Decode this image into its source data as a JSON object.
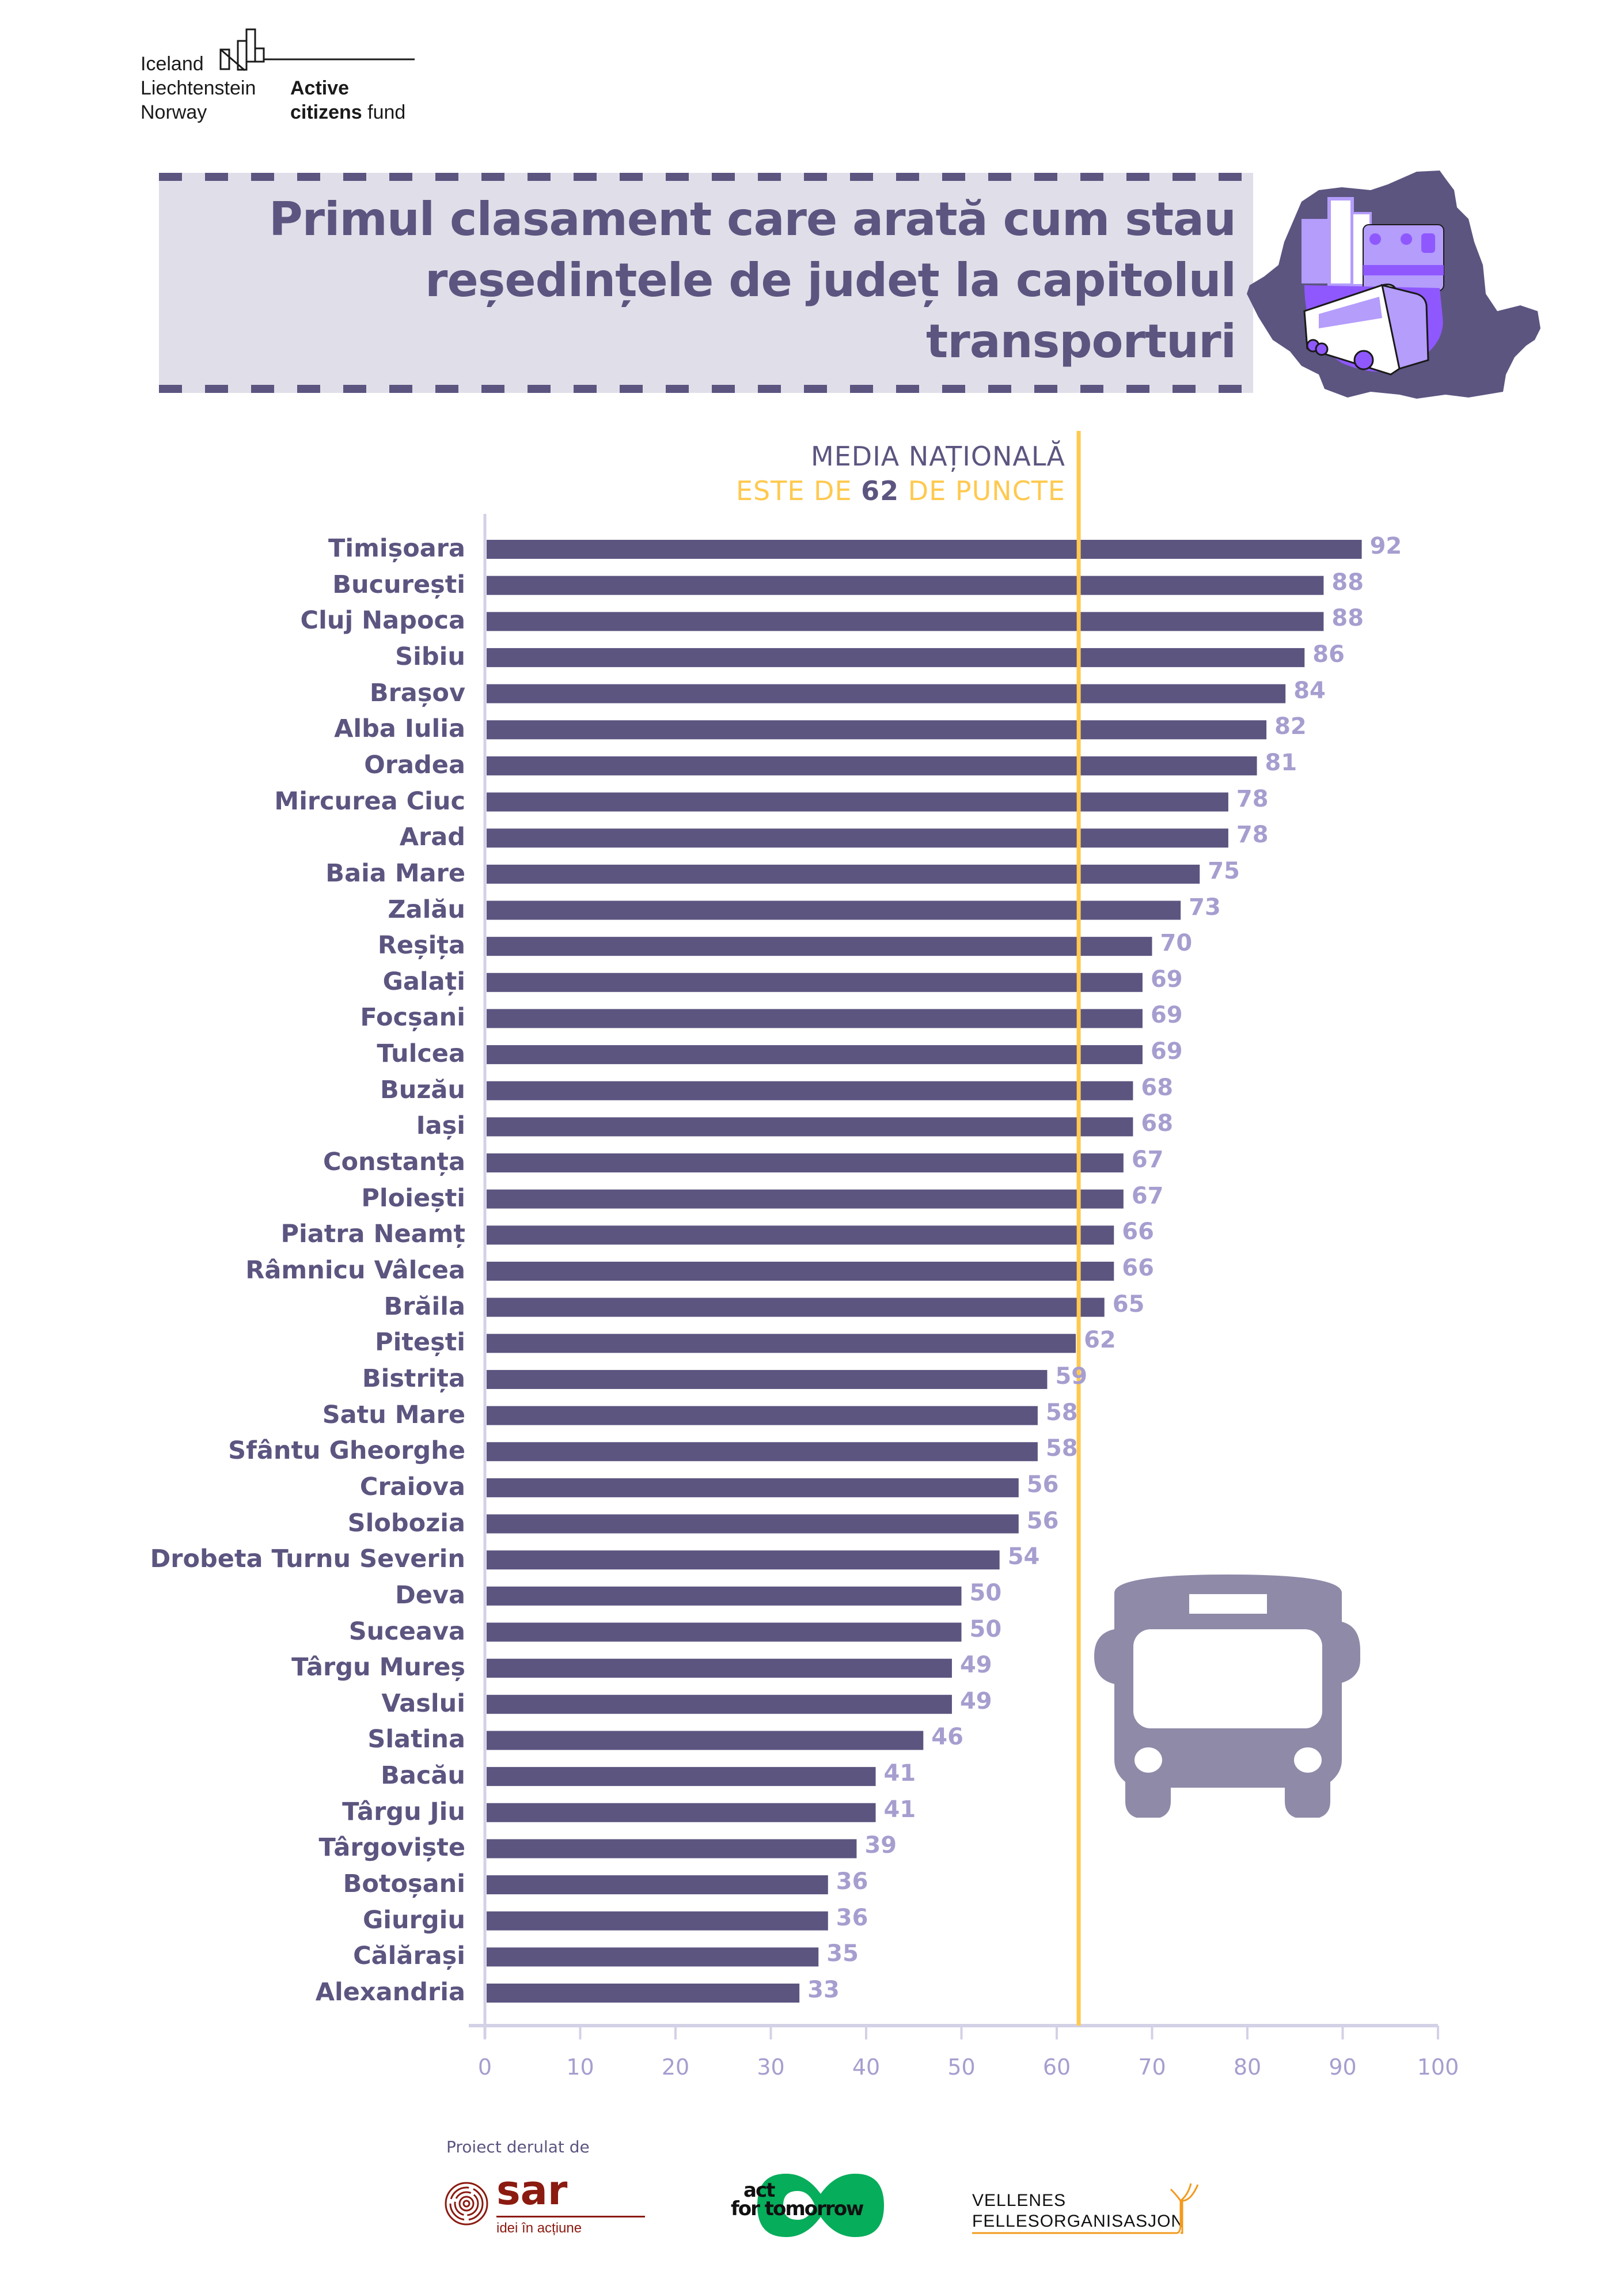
{
  "header": {
    "logo_left_lines": [
      "Iceland",
      "Liechtenstein",
      "Norway"
    ],
    "logo_right_bold_1": "Active",
    "logo_right_bold_2": "citizens",
    "logo_right_regular": "fund"
  },
  "banner": {
    "title_lines": [
      "Primul clasament care arată cum stau",
      "reședințele de județ la capitolul",
      "transporturi"
    ],
    "illustration": "romania-map-bus-city-icon"
  },
  "annotation": {
    "line1": "MEDIA NAȚIONALĂ",
    "line2_prefix": "ESTE DE",
    "line2_number": "62",
    "line2_suffix": "DE PUNCTE"
  },
  "colors": {
    "bar": "#5c5580",
    "value_label": "#a69ecf",
    "mean_line": "#ffc94f",
    "axis": "#d3d1e6",
    "banner_bg": "#e0dfe9",
    "bus_icon": "#8f8aa8"
  },
  "chart_data": {
    "type": "bar",
    "orientation": "horizontal",
    "title": "Primul clasament care arată cum stau reședințele de județ la capitolul transporturi",
    "xlabel": "",
    "ylabel": "",
    "xlim": [
      0,
      100
    ],
    "xticks": [
      "0",
      "10",
      "20",
      "30",
      "40",
      "50",
      "60",
      "70",
      "80",
      "90",
      "100"
    ],
    "reference_line": {
      "value": 62,
      "label": "MEDIA NAȚIONALĂ ESTE DE 62 DE PUNCTE"
    },
    "grid": false,
    "legend": "none",
    "categories": [
      "Timișoara",
      "București",
      "Cluj Napoca",
      "Sibiu",
      "Brașov",
      "Alba Iulia",
      "Oradea",
      "Mircurea Ciuc",
      "Arad",
      "Baia Mare",
      "Zalău",
      "Reșița",
      "Galați",
      "Focșani",
      "Tulcea",
      "Buzău",
      "Iași",
      "Constanța",
      "Ploiești",
      "Piatra Neamț",
      "Râmnicu Vâlcea",
      "Brăila",
      "Pitești",
      "Bistrița",
      "Satu Mare",
      "Sfântu Gheorghe",
      "Craiova",
      "Slobozia",
      "Drobeta Turnu Severin",
      "Deva",
      "Suceava",
      "Târgu Mureș",
      "Vaslui",
      "Slatina",
      "Bacău",
      "Târgu Jiu",
      "Târgoviște",
      "Botoșani",
      "Giurgiu",
      "Călărași",
      "Alexandria"
    ],
    "values": [
      92,
      88,
      88,
      86,
      84,
      82,
      81,
      78,
      78,
      75,
      73,
      70,
      69,
      69,
      69,
      68,
      68,
      67,
      67,
      66,
      66,
      65,
      62,
      59,
      58,
      58,
      56,
      56,
      54,
      50,
      50,
      49,
      49,
      46,
      41,
      41,
      39,
      36,
      36,
      35,
      33
    ]
  },
  "footer": {
    "label": "Proiect derulat de",
    "sar_name": "sar",
    "sar_tagline": "idei în acțiune",
    "act_line1": "act",
    "act_line2": "for tomorrow",
    "vf_line1": "VELLENES",
    "vf_line2": "FELLESORGANISASJON"
  }
}
